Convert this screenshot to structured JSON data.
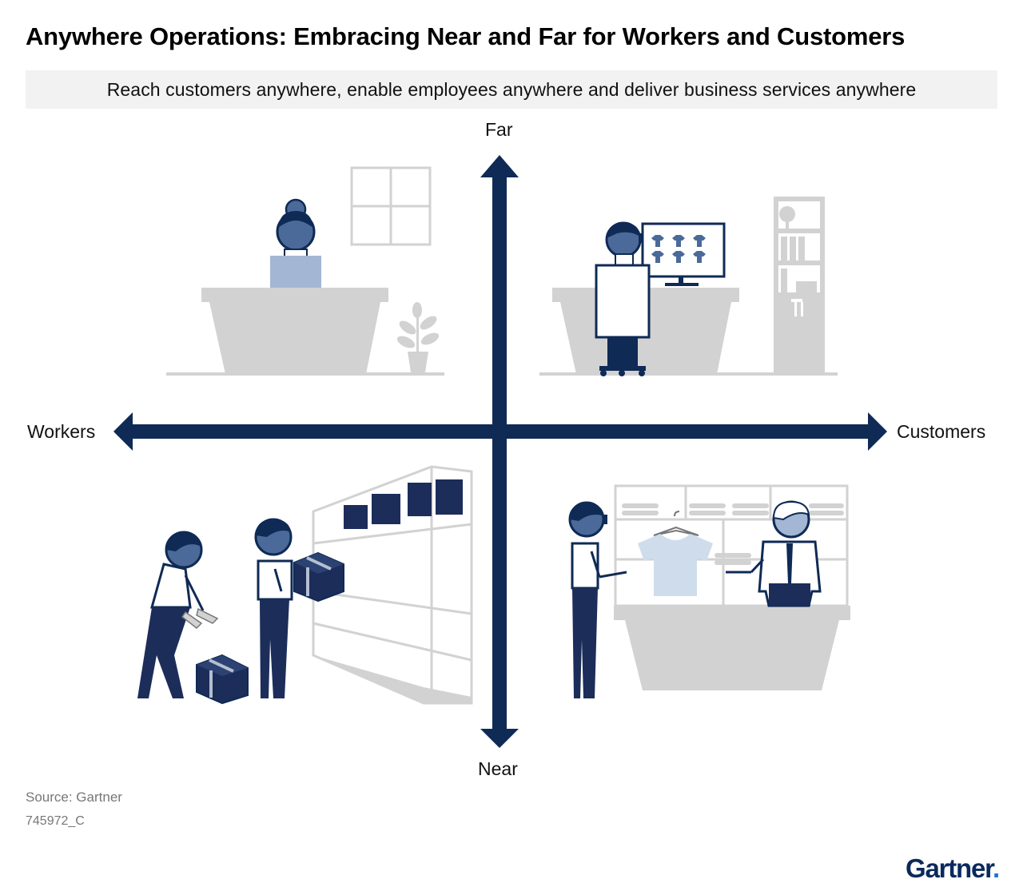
{
  "title": "Anywhere Operations: Embracing Near and Far for Workers and Customers",
  "subtitle": "Reach customers anywhere, enable employees anywhere and deliver business services anywhere",
  "axes": {
    "top": "Far",
    "bottom": "Near",
    "left": "Workers",
    "right": "Customers"
  },
  "footer": {
    "source": "Source: Gartner",
    "code": "745972_C"
  },
  "brand": {
    "name": "Gartner",
    "dot": "."
  },
  "colors": {
    "navy": "#0f2a55",
    "mid_blue": "#4b6a99",
    "light_blue": "#a3b6d4",
    "pale_blue": "#cfdceb",
    "gray": "#d2d2d2",
    "banner": "#f2f2f2"
  },
  "illustrations": [
    {
      "quadrant": "top-left",
      "scene": "worker-at-home-desk-with-laptop"
    },
    {
      "quadrant": "top-right",
      "scene": "customer-shopping-online-at-computer"
    },
    {
      "quadrant": "bottom-left",
      "scene": "warehouse-workers-with-boxes"
    },
    {
      "quadrant": "bottom-right",
      "scene": "in-store-clothing-shop-service"
    }
  ]
}
